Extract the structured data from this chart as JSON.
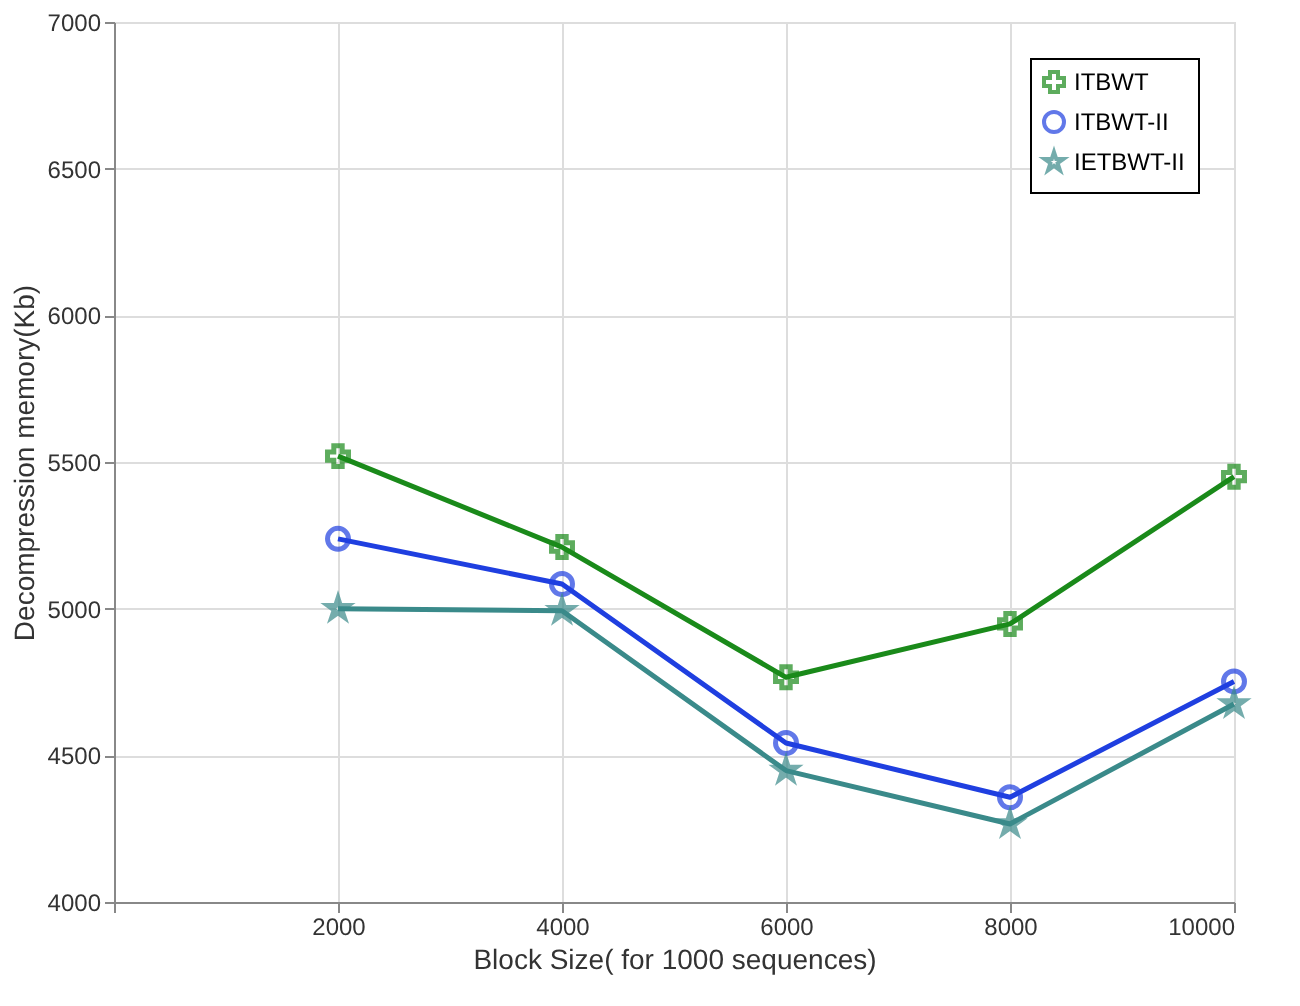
{
  "chart_data": {
    "type": "line",
    "xlabel": "Block Size( for 1000 sequences)",
    "ylabel": "Decompression memory(Kb)",
    "x": [
      2000,
      4000,
      6000,
      8000,
      10000
    ],
    "series": [
      {
        "name": "ITBWT",
        "color": "#1a8a1a",
        "marker": "cross",
        "values": [
          5520,
          5210,
          4766,
          4948,
          5450
        ]
      },
      {
        "name": "ITBWT-II",
        "color": "#1f3fe0",
        "marker": "circle",
        "values": [
          5238,
          5084,
          4542,
          4357,
          4752
        ]
      },
      {
        "name": "IETBWT-II",
        "color": "#3a8a8a",
        "marker": "star",
        "values": [
          5000,
          4993,
          4448,
          4266,
          4675
        ]
      }
    ],
    "xlim": [
      0,
      10000
    ],
    "xticks": [
      {
        "value": 0,
        "label": null
      },
      2000,
      4000,
      6000,
      8000,
      10000
    ],
    "ylim": [
      4000,
      7000
    ],
    "yticks": [
      4000,
      4500,
      5000,
      5500,
      6000,
      6500,
      7000
    ],
    "grid": true,
    "legend": "top right",
    "line_style": "solid"
  }
}
